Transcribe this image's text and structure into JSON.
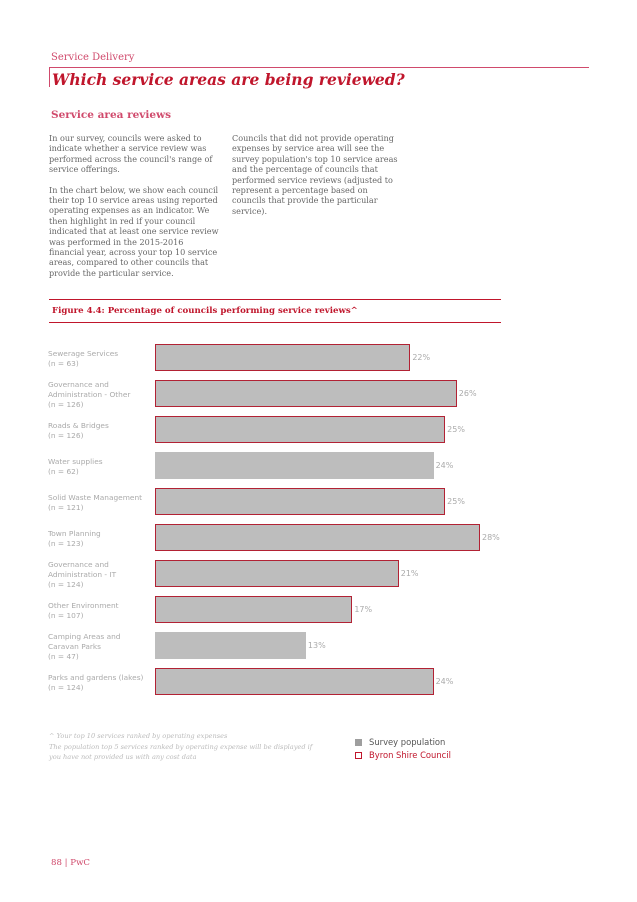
{
  "header": {
    "section": "Service Delivery",
    "title": "Which service areas are being reviewed?"
  },
  "body": {
    "subheading": "Service area reviews",
    "left_paragraphs": [
      "In our survey, councils were asked to indicate whether a service review was performed across the council's range of service offerings.",
      "In the chart below, we show each council their top 10 service areas using reported operating expenses as an indicator. We then highlight in red if your council indicated that at least one service review was performed in the 2015-2016 financial year, across your top 10 service areas, compared to other councils that provide the particular service."
    ],
    "right_paragraphs": [
      "Councils that did not provide operating expenses by service area will see the survey population's top 10 service areas and the percentage of councils that performed service reviews (adjusted to represent a percentage based on councils that provide the particular service)."
    ]
  },
  "figure": {
    "title": "Figure 4.4: Percentage of councils performing service reviews^"
  },
  "chart_data": {
    "type": "bar",
    "orientation": "horizontal",
    "xlim": [
      0,
      28
    ],
    "categories": [
      {
        "label": [
          "Sewerage Services",
          "(n = 63)"
        ],
        "value": 22,
        "display": "22%",
        "highlighted": true
      },
      {
        "label": [
          "Governance and",
          "Administration - Other",
          "(n = 126)"
        ],
        "value": 26,
        "display": "26%",
        "highlighted": true
      },
      {
        "label": [
          "Roads & Bridges",
          "(n = 126)"
        ],
        "value": 25,
        "display": "25%",
        "highlighted": true
      },
      {
        "label": [
          "Water supplies",
          "(n = 62)"
        ],
        "value": 24,
        "display": "24%",
        "highlighted": false
      },
      {
        "label": [
          "Solid Waste Management",
          "(n = 121)"
        ],
        "value": 25,
        "display": "25%",
        "highlighted": true
      },
      {
        "label": [
          "Town Planning",
          "(n = 123)"
        ],
        "value": 28,
        "display": "28%",
        "highlighted": true
      },
      {
        "label": [
          "Governance and",
          "Administration - IT",
          "(n = 124)"
        ],
        "value": 21,
        "display": "21%",
        "highlighted": true
      },
      {
        "label": [
          "Other Environment",
          "(n = 107)"
        ],
        "value": 17,
        "display": "17%",
        "highlighted": true
      },
      {
        "label": [
          "Camping Areas and",
          "Caravan Parks",
          "(n = 47)"
        ],
        "value": 13,
        "display": "13%",
        "highlighted": false
      },
      {
        "label": [
          "Parks and gardens (lakes)",
          "(n = 124)"
        ],
        "value": 24,
        "display": "24%",
        "highlighted": true
      }
    ],
    "legend": [
      {
        "name": "Survey population",
        "color": "#9e9e9e"
      },
      {
        "name": "Byron Shire Council",
        "color": "#c0162c"
      }
    ]
  },
  "footnote": {
    "lines": [
      "^ Your top 10 services ranked by operating expenses",
      "The population top 5 services ranked by operating expense will be displayed if",
      "you have not provided us with any cost data"
    ]
  },
  "footer": {
    "page": "88 | PwC"
  },
  "colors": {
    "accent": "#c0162c",
    "bar": "#bdbdbd"
  }
}
